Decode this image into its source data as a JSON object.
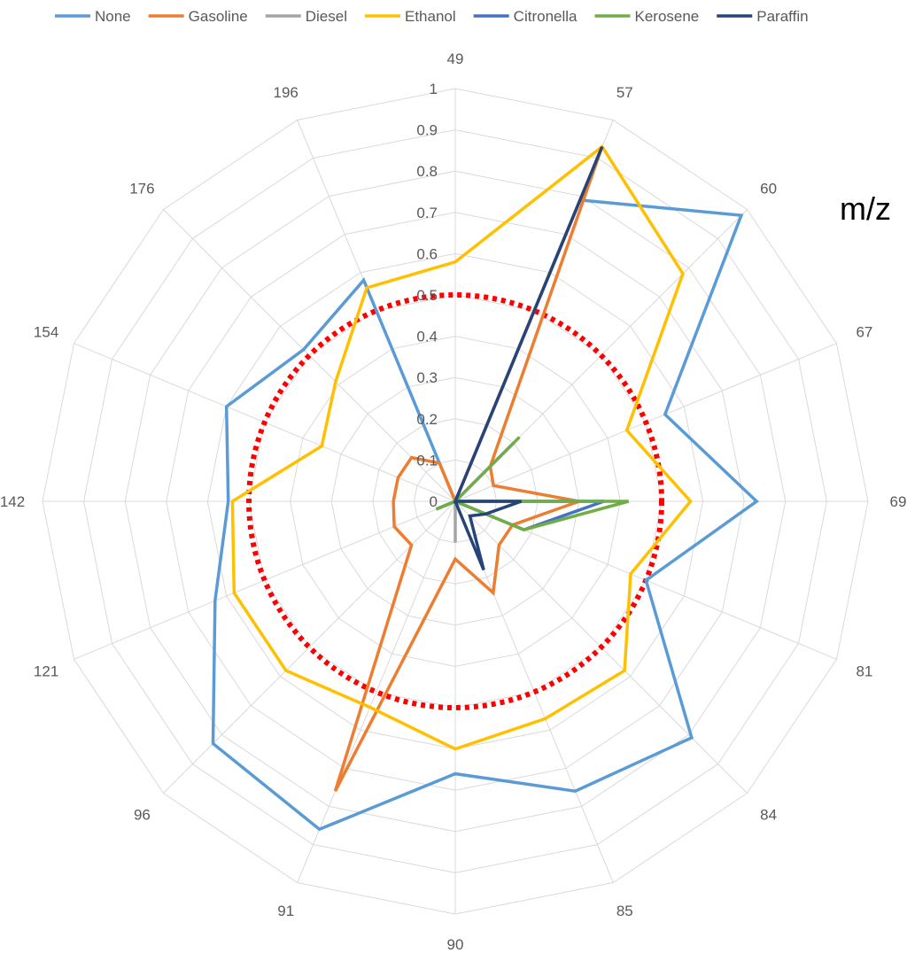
{
  "chart_data": {
    "type": "radar",
    "title": "",
    "axis_title": "m/z",
    "categories": [
      "49",
      "57",
      "60",
      "67",
      "69",
      "81",
      "84",
      "85",
      "90",
      "91",
      "96",
      "121",
      "142",
      "154",
      "176",
      "196"
    ],
    "rlim": [
      0,
      1
    ],
    "ticks": [
      "0",
      "0.1",
      "0.2",
      "0.3",
      "0.4",
      "0.5",
      "0.6",
      "0.7",
      "0.8",
      "0.9",
      "1"
    ],
    "grid": true,
    "legend_position": "top",
    "threshold": {
      "value": 0.5,
      "color": "#ff0000",
      "style": "dotted"
    },
    "series": [
      {
        "name": "None",
        "color": "#5b9bd5",
        "values": [
          0.0,
          0.79,
          0.98,
          0.55,
          0.73,
          0.5,
          0.81,
          0.76,
          0.66,
          0.86,
          0.83,
          0.63,
          0.55,
          0.6,
          0.52,
          0.58
        ]
      },
      {
        "name": "Gasoline",
        "color": "#ed7d31",
        "values": [
          0.0,
          0.93,
          0.12,
          0.1,
          0.3,
          0.15,
          0.15,
          0.24,
          0.14,
          0.76,
          0.15,
          0.16,
          0.15,
          0.15,
          0.15,
          0.1
        ]
      },
      {
        "name": "Diesel",
        "color": "#a5a5a5",
        "values": [
          0.0,
          0.0,
          0.0,
          0.0,
          0.36,
          0.0,
          0.0,
          0.0,
          0.1,
          0.0,
          0.0,
          0.05,
          0.0,
          0.0,
          0.0,
          0.0
        ]
      },
      {
        "name": "Ethanol",
        "color": "#ffc000",
        "values": [
          0.58,
          0.93,
          0.78,
          0.45,
          0.57,
          0.46,
          0.58,
          0.57,
          0.6,
          0.54,
          0.58,
          0.58,
          0.54,
          0.35,
          0.41,
          0.56
        ]
      },
      {
        "name": "Citronella",
        "color": "#4472c4",
        "values": [
          0.0,
          0.0,
          0.2,
          0.0,
          0.36,
          0.18,
          0.0,
          0.0,
          0.0,
          0.0,
          0.0,
          0.05,
          0.0,
          0.0,
          0.0,
          0.0
        ]
      },
      {
        "name": "Kerosene",
        "color": "#70ad47",
        "values": [
          0.0,
          0.0,
          0.22,
          0.0,
          0.42,
          0.18,
          0.0,
          0.0,
          0.0,
          0.0,
          0.0,
          0.05,
          0.0,
          0.0,
          0.0,
          0.0
        ]
      },
      {
        "name": "Paraffin",
        "color": "#264478",
        "values": [
          0.0,
          0.93,
          0.0,
          0.0,
          0.16,
          0.08,
          0.05,
          0.18,
          0.0,
          0.0,
          0.0,
          0.0,
          0.0,
          0.0,
          0.0,
          0.0
        ]
      }
    ]
  }
}
